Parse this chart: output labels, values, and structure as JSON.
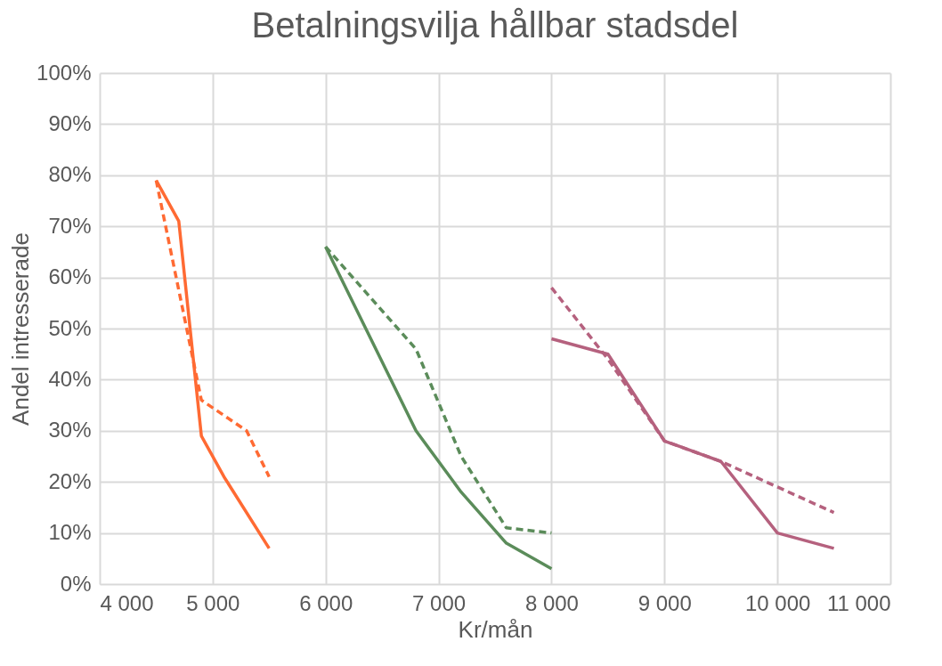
{
  "chart_data": {
    "type": "line",
    "title": "Betalningsvilja hållbar stadsdel",
    "xlabel": "Kr/mån",
    "ylabel": "Andel intresserade",
    "xlim": [
      4000,
      11000
    ],
    "xticks": [
      {
        "value": 4000,
        "label": "4 000"
      },
      {
        "value": 5000,
        "label": "5 000"
      },
      {
        "value": 6000,
        "label": "6 000"
      },
      {
        "value": 7000,
        "label": "7 000"
      },
      {
        "value": 8000,
        "label": "8 000"
      },
      {
        "value": 9000,
        "label": "9 000"
      },
      {
        "value": 10000,
        "label": "10 000"
      },
      {
        "value": 11000,
        "label": "11 000"
      }
    ],
    "ylim": [
      0,
      100
    ],
    "yticks": [
      {
        "value": 0,
        "label": "0%"
      },
      {
        "value": 10,
        "label": "10%"
      },
      {
        "value": 20,
        "label": "20%"
      },
      {
        "value": 30,
        "label": "30%"
      },
      {
        "value": 40,
        "label": "40%"
      },
      {
        "value": 50,
        "label": "50%"
      },
      {
        "value": 60,
        "label": "60%"
      },
      {
        "value": 70,
        "label": "70%"
      },
      {
        "value": 80,
        "label": "80%"
      },
      {
        "value": 90,
        "label": "90%"
      },
      {
        "value": 100,
        "label": "100%"
      }
    ],
    "grid": true,
    "legend": false,
    "marker": "none",
    "series": [
      {
        "color": "#ff6a33",
        "line_style": "solid",
        "x": [
          4500,
          4700,
          4900,
          5100,
          5500
        ],
        "values": [
          79,
          71,
          29,
          21,
          7
        ]
      },
      {
        "color": "#ff6a33",
        "line_style": "dashed",
        "x": [
          4500,
          4900,
          5300,
          5500
        ],
        "values": [
          79,
          36,
          30,
          21
        ]
      },
      {
        "color": "#5b8c5a",
        "line_style": "solid",
        "x": [
          6000,
          6800,
          7200,
          7600,
          8000
        ],
        "values": [
          66,
          30,
          18,
          8,
          3
        ]
      },
      {
        "color": "#5b8c5a",
        "line_style": "dashed",
        "x": [
          6000,
          6800,
          7200,
          7600,
          8000
        ],
        "values": [
          66,
          46,
          25,
          11,
          10
        ]
      },
      {
        "color": "#b5617e",
        "line_style": "solid",
        "x": [
          8000,
          8500,
          9000,
          9500,
          10000,
          10500
        ],
        "values": [
          48,
          45,
          28,
          24,
          10,
          7
        ]
      },
      {
        "color": "#b5617e",
        "line_style": "dashed",
        "x": [
          8000,
          8500,
          9000,
          9500,
          10000,
          10500
        ],
        "values": [
          58,
          44,
          28,
          24,
          19,
          14
        ]
      }
    ]
  }
}
